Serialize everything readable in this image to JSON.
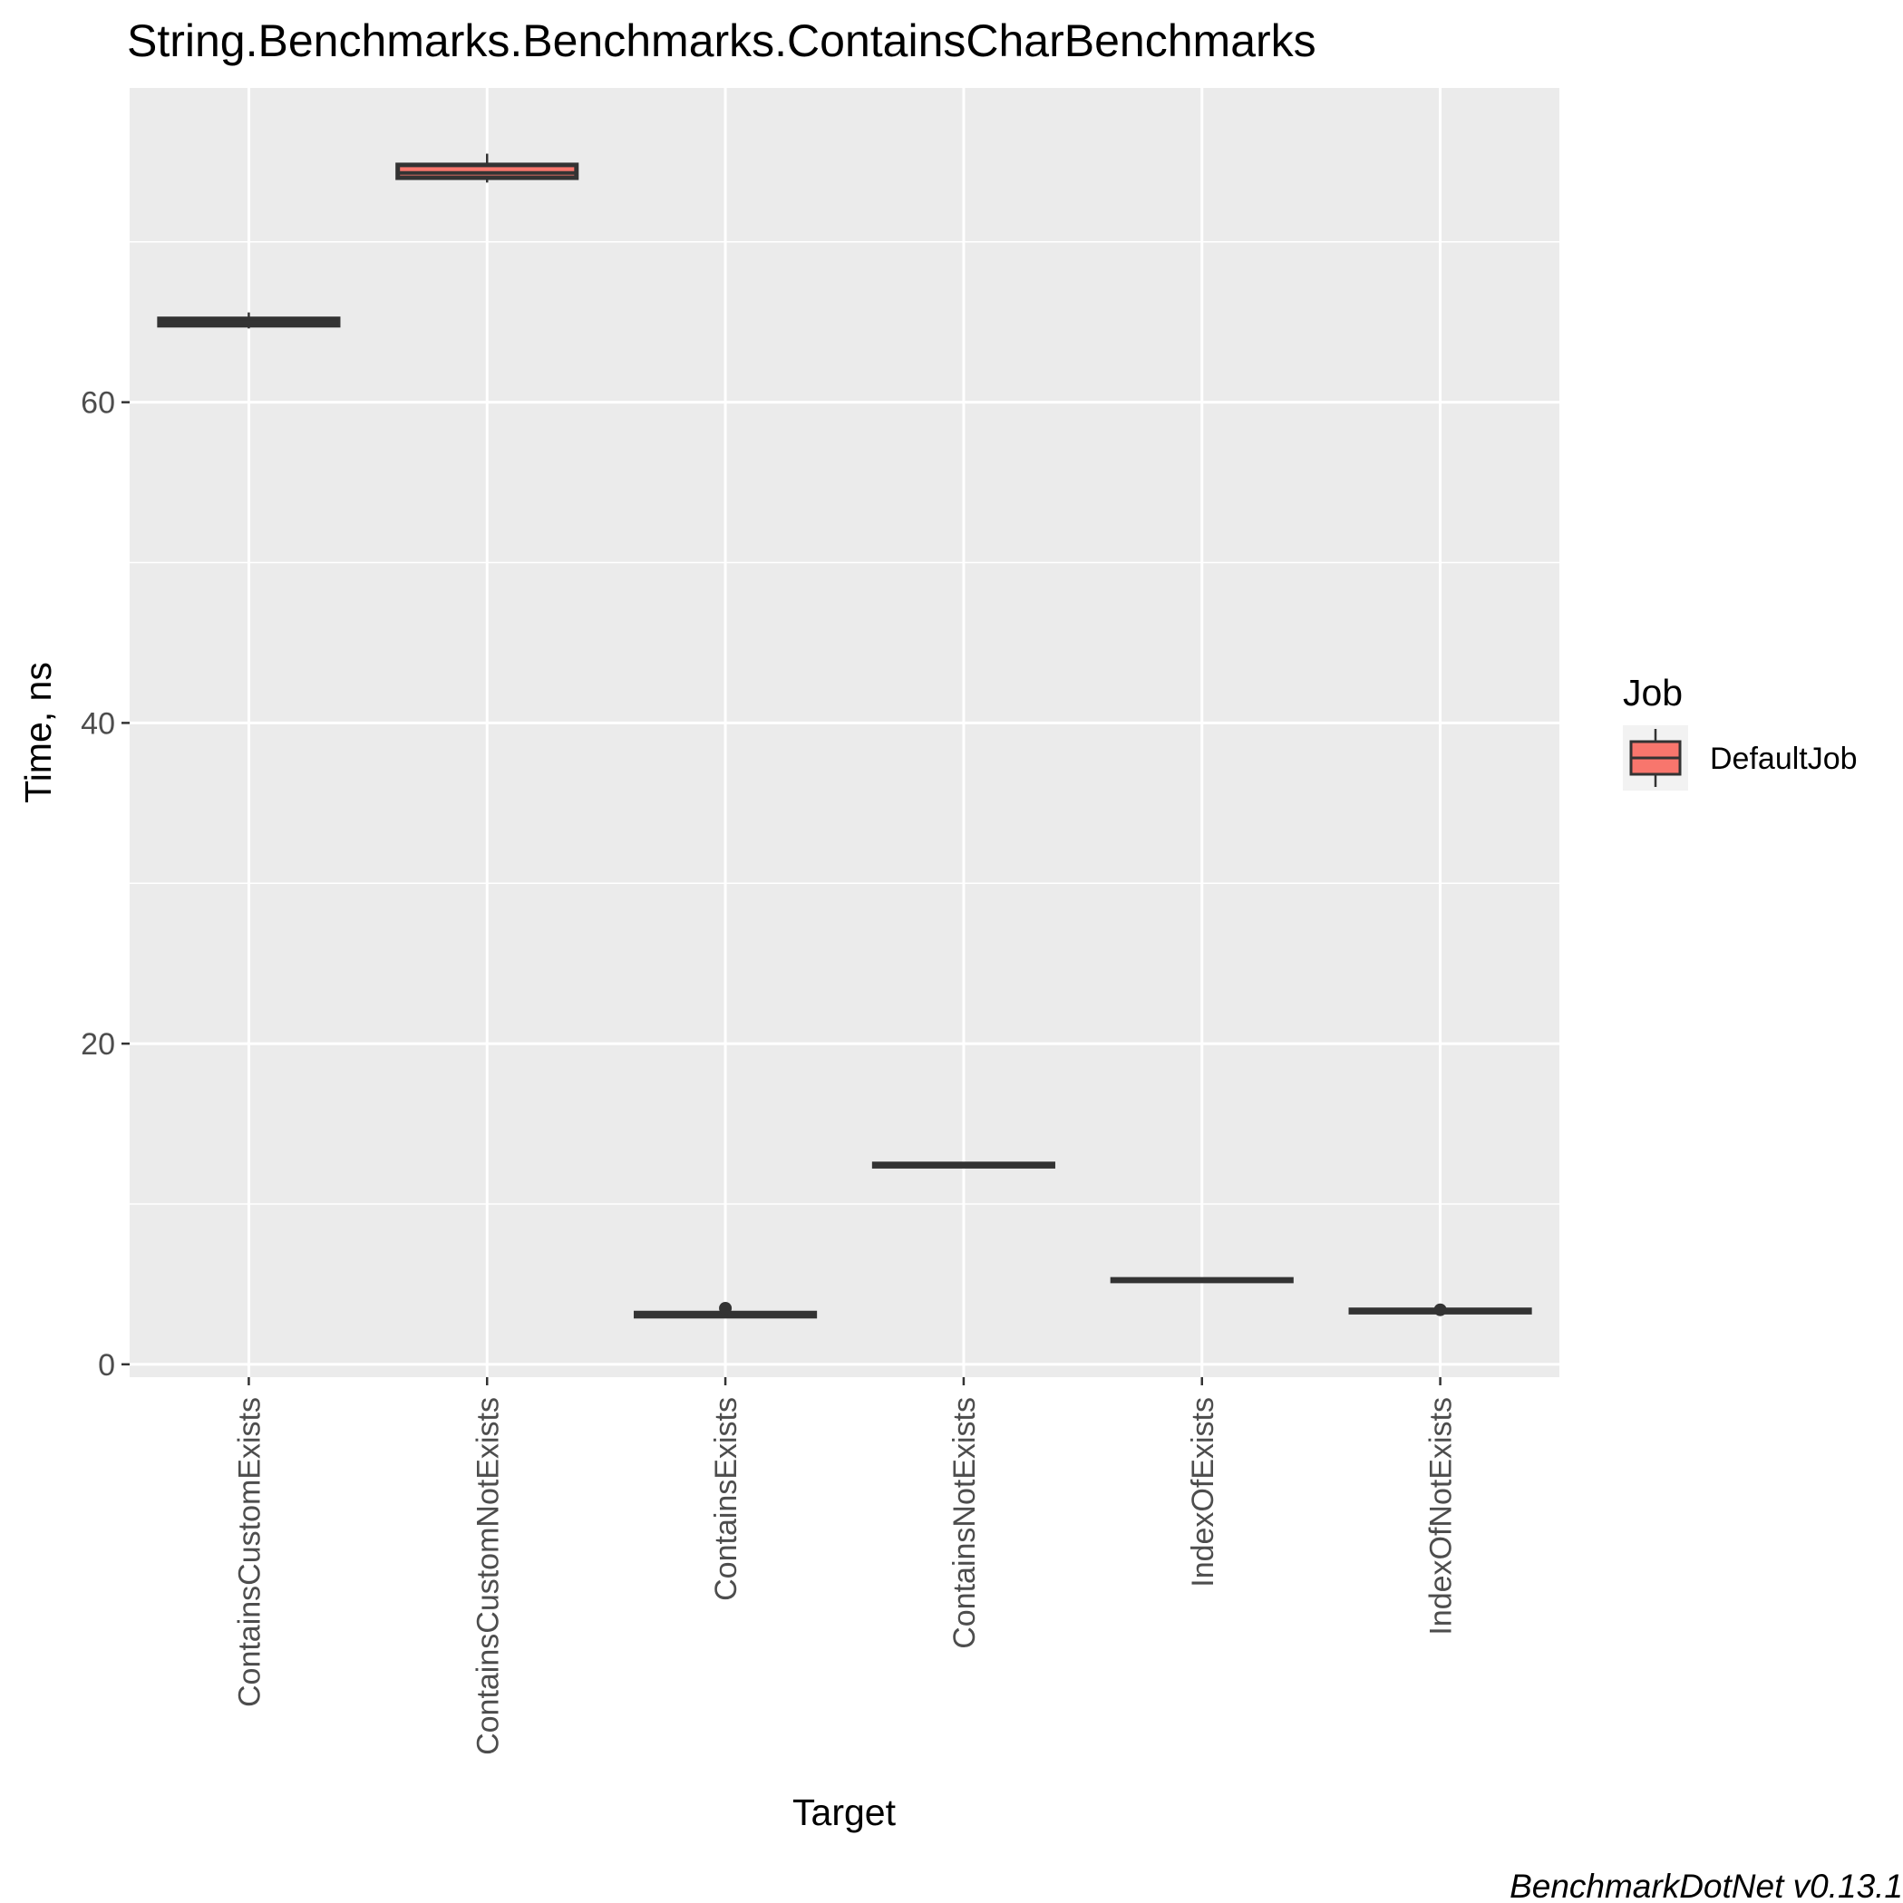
{
  "chart_data": {
    "type": "box",
    "title": "String.Benchmarks.Benchmarks.ContainsCharBenchmarks",
    "xlabel": "Target",
    "ylabel": "Time, ns",
    "ylim": [
      -0.8,
      79.6
    ],
    "yticks": [
      0,
      20,
      40,
      60
    ],
    "grid": true,
    "categories": [
      "ContainsCustomExists",
      "ContainsCustomNotExists",
      "ContainsExists",
      "ContainsNotExists",
      "IndexOfExists",
      "IndexOfNotExists"
    ],
    "series": [
      {
        "name": "DefaultJob",
        "color": "#F8766D",
        "boxes": [
          {
            "min": 64.6,
            "q1": 64.8,
            "median": 65.0,
            "q3": 65.2,
            "max": 65.6,
            "outliers": []
          },
          {
            "min": 73.7,
            "q1": 74.0,
            "median": 74.3,
            "q3": 74.8,
            "max": 75.5,
            "outliers": []
          },
          {
            "min": 3.0,
            "q1": 3.0,
            "median": 3.1,
            "q3": 3.2,
            "max": 3.2,
            "outliers": [
              3.5
            ]
          },
          {
            "min": 12.3,
            "q1": 12.35,
            "median": 12.4,
            "q3": 12.5,
            "max": 12.5,
            "outliers": []
          },
          {
            "min": 5.2,
            "q1": 5.2,
            "median": 5.25,
            "q3": 5.3,
            "max": 5.3,
            "outliers": []
          },
          {
            "min": 3.2,
            "q1": 3.25,
            "median": 3.3,
            "q3": 3.4,
            "max": 3.4,
            "outliers": [
              3.4
            ]
          }
        ]
      }
    ],
    "legend": {
      "title": "Job",
      "position": "right",
      "entries": [
        "DefaultJob"
      ]
    },
    "caption": "BenchmarkDotNet v0.13.1"
  }
}
